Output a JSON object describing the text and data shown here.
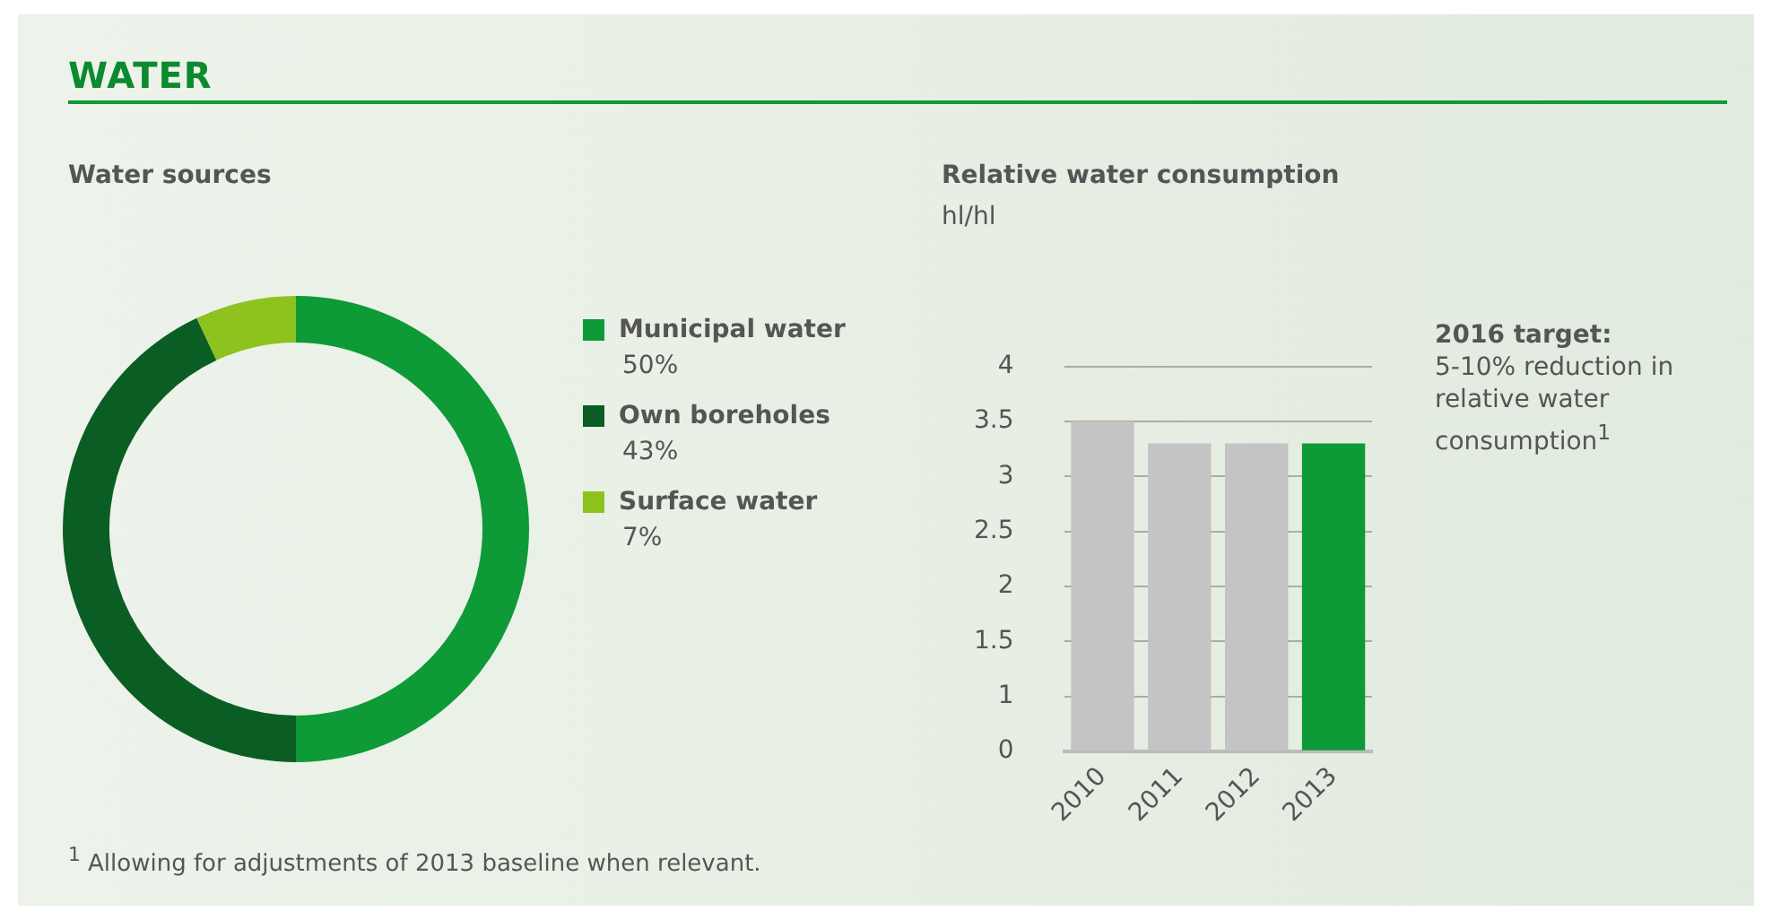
{
  "chart_data": [
    {
      "type": "donut",
      "title": "WATER",
      "subtitle": "Water sources",
      "categories": [
        "Municipal water",
        "Own boreholes",
        "Surface water"
      ],
      "values": [
        50,
        43,
        7
      ],
      "colors": [
        "#0e9a36",
        "#0b5e23",
        "#8dc21f"
      ],
      "value_labels": [
        "50%",
        "43%",
        "7%"
      ],
      "legend": "right"
    },
    {
      "type": "bar",
      "title": "Relative water consumption",
      "subtitle": "hl/hl",
      "categories": [
        "2010",
        "2011",
        "2012",
        "2013"
      ],
      "values": [
        3.5,
        3.3,
        3.3,
        3.3
      ],
      "colors": [
        "#c4c4c4",
        "#c4c4c4",
        "#c4c4c4",
        "#0e9a36"
      ],
      "ylim": [
        0.5,
        4
      ],
      "yticks": [
        {
          "value": 0.5,
          "label": "0"
        },
        1,
        1.5,
        2,
        2.5,
        3,
        3.5,
        4
      ],
      "grid": "y",
      "legend": false,
      "annotations": [
        "2016 target:",
        "5-10% reduction in relative water consumption$^{1}$",
        "$^{1}$ Allowing for adjustments of 2013 baseline when relevant."
      ]
    }
  ]
}
